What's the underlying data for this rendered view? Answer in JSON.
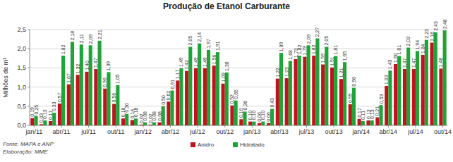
{
  "chart_data": {
    "type": "bar",
    "title": "Produção de Etanol Carburante",
    "y_label": "Milhões de m³",
    "annotations": [
      "Fonte: MAPA e ANP",
      "Elaboração: MME"
    ],
    "categories": [
      "jan/11",
      null,
      null,
      "abr/11",
      null,
      null,
      "jul/11",
      null,
      null,
      "out/11",
      null,
      null,
      "jan/12",
      null,
      null,
      "abr/12",
      null,
      null,
      "jul/12",
      null,
      null,
      "out/12",
      null,
      null,
      "jan/13",
      null,
      null,
      "abr/13",
      null,
      null,
      "jul/13",
      null,
      null,
      "out/13",
      null,
      null,
      "jan/14",
      null,
      null,
      "abr/14",
      null,
      null,
      "jul/14",
      null,
      null,
      "out/14"
    ],
    "series": [
      {
        "name": "Anidro",
        "color": "#c0141c",
        "values": [
          0.19,
          0.03,
          0.11,
          0.57,
          1.07,
          1.32,
          1.4,
          1.47,
          0.96,
          0.56,
          0.18,
          0.14,
          0.02,
          0.02,
          0.08,
          0.62,
          1.17,
          1.42,
          1.49,
          1.49,
          1.56,
          1.09,
          0.52,
          0.16,
          0.1,
          0.06,
          0.06,
          1.22,
          1.23,
          1.73,
          1.79,
          1.82,
          1.59,
          1.51,
          1.21,
          0.55,
          0.17,
          0.13,
          0.21,
          1.03,
          1.6,
          1.47,
          1.47,
          1.84,
          2.16,
          1.48
        ],
        "value_labels": [
          "0,19",
          "0,03",
          "0,11",
          "0,57",
          "1,07",
          "1,32",
          "1,40",
          "1,47",
          "0,96",
          "0,56",
          "0,18",
          "0,14",
          "0,02",
          "0,02",
          "0,08",
          "0,62",
          "1,17",
          "1,42",
          "1,49",
          "1,49",
          "1,56",
          "1,09",
          "0,52",
          "0,16",
          "0,10",
          "0,06",
          "0,06",
          "1,22",
          "1,23",
          "1,73",
          "1,79",
          "1,82",
          "1,59",
          "1,51",
          "1,21",
          "0,55",
          "0,17",
          "0,13",
          "0,21",
          "1,03",
          "1,60",
          "1,47",
          "1,47",
          "1,84",
          "2,16",
          "1,48"
        ]
      },
      {
        "name": "Hidratado",
        "color": "#22a33a",
        "values": [
          0.25,
          0.13,
          0.33,
          1.82,
          2.18,
          2.11,
          2.09,
          2.21,
          1.39,
          1.05,
          0.3,
          0.18,
          0.08,
          0.08,
          0.5,
          0.91,
          1.49,
          2.05,
          2.14,
          1.97,
          1.91,
          1.38,
          0.65,
          0.36,
          0.1,
          0.1,
          0.43,
          1.89,
          1.68,
          1.82,
          2.09,
          2.27,
          2.05,
          1.81,
          1.65,
          0.98,
          0.11,
          0.13,
          0.53,
          1.43,
          1.81,
          2.03,
          1.94,
          2.23,
          2.43,
          2.48
        ],
        "value_labels": [
          "0,25",
          "0,13",
          "0,33",
          "1,82",
          "2,18",
          "2,11",
          "2,09",
          "2,21",
          "1,39",
          "1,05",
          "0,30",
          "0,18",
          "0,08",
          "0,08",
          "0,50",
          "0,91",
          "1,49",
          "2,05",
          "2,14",
          "1,97",
          "1,91",
          "1,38",
          "0,65",
          "0,36",
          "0,10",
          "0,10",
          "0,43",
          "1,89",
          "1,68",
          "1,82",
          "2,09",
          "2,27",
          "2,05",
          "1,81",
          "1,65",
          "0,98",
          "0,11",
          "0,13",
          "0,53",
          "1,43",
          "1,81",
          "2,03",
          "1,94",
          "2,23",
          "2,43",
          "2,48"
        ]
      }
    ],
    "ylim": [
      0,
      2.5
    ],
    "yticks": [
      {
        "value": 0,
        "label": "0,0"
      },
      {
        "value": 0.5,
        "label": "0,5"
      },
      {
        "value": 1,
        "label": "1,0"
      },
      {
        "value": 1.5,
        "label": "1,5"
      },
      {
        "value": 2,
        "label": "2,0"
      },
      {
        "value": 2.5,
        "label": "2,5"
      }
    ],
    "grid": true,
    "data_labels": true,
    "legend": "bottom"
  }
}
